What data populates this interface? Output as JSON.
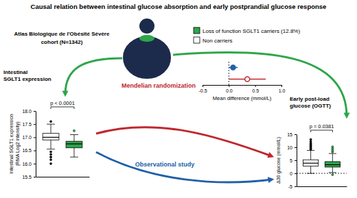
{
  "title": "Causal relation between intestinal glucose absorption and early postprandial glucose response",
  "cohort": [
    "Atlas Biologique de l'Obésité Sévère",
    "cohort (N=1342)"
  ],
  "legend_items": [
    {
      "label": "Loss of function SGLT1 carriers (12.8%)",
      "color": "#2ea64a"
    },
    {
      "label": "Non carriers",
      "color": "#ffffff"
    }
  ],
  "left_label": [
    "Intestinal",
    "SGLT1 expression"
  ],
  "right_label": [
    "Early post-load",
    "glucose (OGTT)"
  ],
  "chart_data": [
    {
      "type": "box",
      "categories": [
        null,
        null
      ],
      "colors": [
        "#ffffff",
        "#2ea64a"
      ],
      "y_label": [
        "Intestinal SGLT1 expression",
        "(RMA Log2 intensity)"
      ],
      "ylim": [
        15.5,
        18.0
      ],
      "yticks": [
        15.5,
        {
          "value": 16,
          "label": "16.0"
        },
        16.5,
        {
          "value": 17,
          "label": "17.0"
        },
        17.5,
        {
          "value": 18,
          "label": "18.0"
        }
      ],
      "annotations": [
        "p < 0.0001"
      ],
      "boxes": [
        {
          "min": 16.55,
          "q1": 16.9,
          "median": 17.0,
          "q3": 17.15,
          "max": 17.5,
          "outliers": [
            16.45,
            16.35,
            16.25,
            16.15,
            16.0,
            17.6
          ]
        },
        {
          "min": 16.25,
          "q1": 16.6,
          "median": 16.75,
          "q3": 16.85,
          "max": 17.1,
          "outliers": [
            17.25
          ]
        }
      ]
    },
    {
      "type": "forest",
      "orientation": "horizontal",
      "categories": [
        null,
        null
      ],
      "x_label": "Mean difference (mmol/L)",
      "xlim": [
        -0.5,
        1.0
      ],
      "xticks": [
        -0.5,
        {
          "value": 0,
          "label": "0.0"
        },
        0.5,
        {
          "value": 1,
          "label": "1.0"
        }
      ],
      "ref_line": 0,
      "series": [
        {
          "name": "Observational study",
          "color": "#2060a8",
          "marker": "filled",
          "values": [
            0.08,
            null
          ],
          "ci_low": [
            0.0,
            null
          ],
          "ci_high": [
            0.17,
            null
          ]
        },
        {
          "name": "Mendelian randomization",
          "color": "#c0272d",
          "marker": "open",
          "values": [
            null,
            0.35
          ],
          "ci_low": [
            null,
            0.0
          ],
          "ci_high": [
            null,
            0.7
          ]
        }
      ]
    },
    {
      "type": "box",
      "categories": [
        null,
        null
      ],
      "colors": [
        "#ffffff",
        "#2ea64a"
      ],
      "y_label": [
        "Δ30 glucose (mmol/L)"
      ],
      "ylim": [
        -5,
        15
      ],
      "yticks": [
        -5,
        0,
        5,
        10,
        15
      ],
      "ref_line": 0,
      "annotations": [
        "p = 0.0381"
      ],
      "boxes": [
        {
          "min": 0,
          "q1": 2.8,
          "median": 3.9,
          "q3": 5.2,
          "max": 8.8,
          "outliers": [
            9.2,
            9.6,
            10.1,
            10.5,
            11,
            11.5,
            12.2,
            13
          ]
        },
        {
          "min": 0.3,
          "q1": 2.4,
          "median": 3.3,
          "q3": 4.5,
          "max": 7.6,
          "outliers": [
            8.2,
            8.8,
            9.5,
            10.2,
            -0.5
          ]
        }
      ]
    }
  ]
}
